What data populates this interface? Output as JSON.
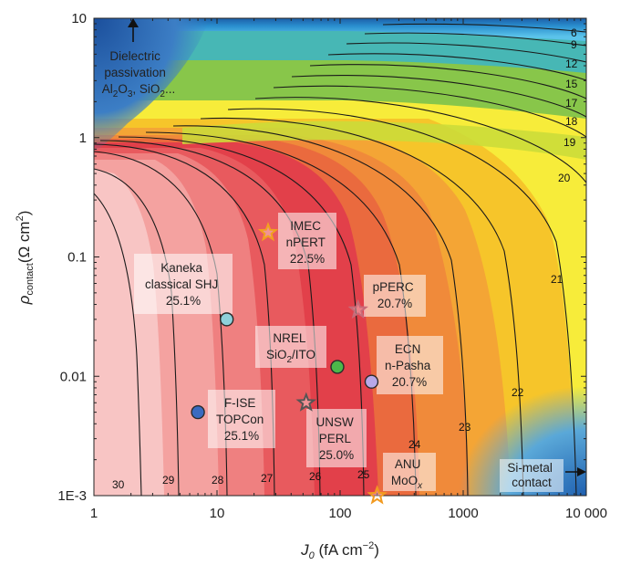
{
  "chart_data": {
    "type": "contour",
    "xlabel": "J0 (fA cm−2)",
    "ylabel": "ρcontact(Ω cm2)",
    "xscale": "log",
    "yscale": "log",
    "xlim": [
      1,
      10000
    ],
    "ylim": [
      0.001,
      10
    ],
    "x_ticks": [
      {
        "value": 1,
        "label": "1"
      },
      {
        "value": 10,
        "label": "10"
      },
      {
        "value": 100,
        "label": "100"
      },
      {
        "value": 1000,
        "label": "1000"
      },
      {
        "value": 10000,
        "label": "10 000"
      }
    ],
    "y_ticks": [
      {
        "value": 10,
        "label": "10"
      },
      {
        "value": 1,
        "label": "1"
      },
      {
        "value": 0.1,
        "label": "0.1"
      },
      {
        "value": 0.01,
        "label": "0.01"
      },
      {
        "value": 0.001,
        "label": "1E-3"
      }
    ],
    "contour_levels": [
      30,
      29,
      28,
      27,
      26,
      25,
      24,
      23,
      22,
      21,
      20,
      19,
      18,
      17,
      15,
      12,
      9,
      6
    ],
    "points": [
      {
        "name": "Kaneka classical SHJ",
        "lines": [
          "Kaneka",
          "classical SHJ",
          "25.1%"
        ],
        "x": 12,
        "y": 0.03,
        "marker": "circle",
        "color": "#8ed0da"
      },
      {
        "name": "IMEC nPERT",
        "lines": [
          "IMEC",
          "nPERT",
          "22.5%"
        ],
        "x": 26,
        "y": 0.16,
        "marker": "star",
        "color": "#f2a020"
      },
      {
        "name": "pPERC",
        "lines": [
          "pPERC",
          "20.7%"
        ],
        "x": 140,
        "y": 0.036,
        "marker": "star",
        "color": "#c86a78"
      },
      {
        "name": "NREL SiO2/ITO",
        "lines": [
          "NREL",
          "SiO2/ITO"
        ],
        "x": 95,
        "y": 0.012,
        "marker": "circle",
        "color": "#4cb84a"
      },
      {
        "name": "ECN n-Pasha",
        "lines": [
          "ECN",
          "n-Pasha",
          "20.7%"
        ],
        "x": 180,
        "y": 0.009,
        "marker": "circle",
        "color": "#b8a8e8"
      },
      {
        "name": "F-ISE TOPCon",
        "lines": [
          "F-ISE",
          "TOPCon",
          "25.1%"
        ],
        "x": 7,
        "y": 0.005,
        "marker": "circle",
        "color": "#3a6bc0"
      },
      {
        "name": "UNSW PERL",
        "lines": [
          "UNSW",
          "PERL",
          "25.0%"
        ],
        "x": 53,
        "y": 0.006,
        "marker": "star",
        "color": "#555555"
      },
      {
        "name": "ANU MoOx",
        "lines": [
          "ANU",
          "MoOx"
        ],
        "x": 200,
        "y": 0.001,
        "marker": "star",
        "color": "#f29a20"
      }
    ],
    "annotations": {
      "dielectric": [
        "Dielectric",
        "passivation",
        "Al2O3, SiO2..."
      ],
      "si_metal": [
        "Si-metal",
        "contact"
      ]
    }
  }
}
